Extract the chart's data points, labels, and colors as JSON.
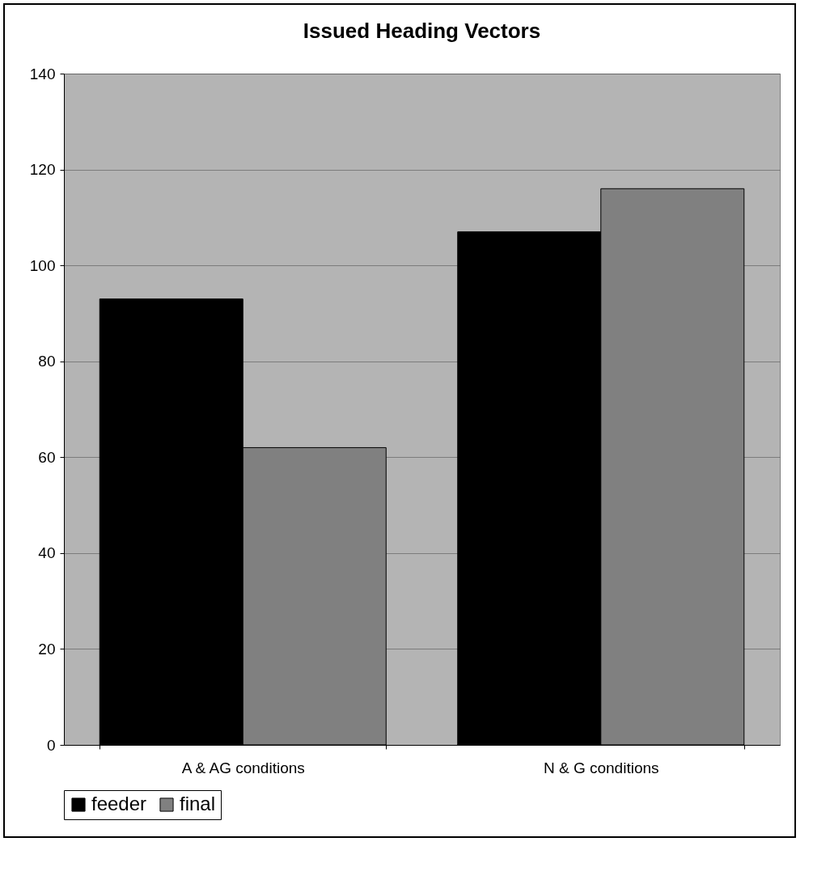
{
  "chart_data": {
    "type": "bar",
    "title": "Issued Heading Vectors",
    "categories": [
      "A & AG conditions",
      "N & G conditions"
    ],
    "series": [
      {
        "name": "feeder",
        "color": "#000000",
        "values": [
          93,
          107
        ]
      },
      {
        "name": "final",
        "color": "#808080",
        "values": [
          62,
          116
        ]
      }
    ],
    "ylim": [
      0,
      140
    ],
    "yticks": [
      0,
      20,
      40,
      60,
      80,
      100,
      120,
      140
    ],
    "grid": "y",
    "legend": "bottom"
  }
}
